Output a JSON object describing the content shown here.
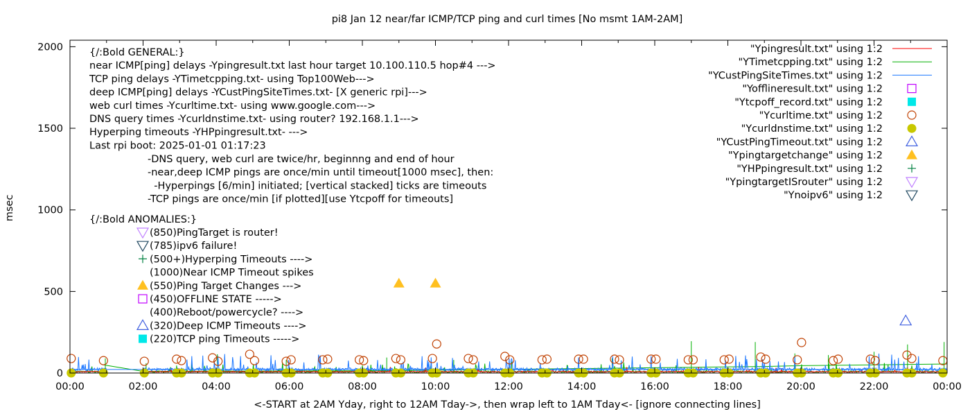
{
  "chart_data": {
    "type": "scatter",
    "title": "pi8 Jan 12  near/far ICMP/TCP ping and curl times [No msmt 1AM-2AM]",
    "xlabel": "<-START at 2AM Yday, right to 12AM Tday->, then wrap left to 1AM Tday<- [ignore connecting lines]",
    "ylabel": "msec",
    "xlim": [
      "00:00",
      "24:00"
    ],
    "ylim": [
      0,
      2040
    ],
    "x_ticks": [
      "00:00",
      "02:00",
      "04:00",
      "06:00",
      "08:00",
      "10:00",
      "12:00",
      "14:00",
      "16:00",
      "18:00",
      "20:00",
      "22:00",
      "00:00"
    ],
    "y_ticks": [
      0,
      500,
      1000,
      1500,
      2000
    ],
    "grid": false,
    "legend_placement": "top-right",
    "legend": [
      {
        "label": "\"Ypingresult.txt\" using 1:2",
        "kind": "line",
        "color": "#ff0000"
      },
      {
        "label": "\"YTimetcpping.txt\" using 1:2",
        "kind": "line",
        "color": "#00b000"
      },
      {
        "label": "\"YCustPingSiteTimes.txt\" using 1:2",
        "kind": "line",
        "color": "#1e78ff"
      },
      {
        "label": "\"Yofflineresult.txt\" using 1:2",
        "kind": "open-square",
        "color": "#c000ff"
      },
      {
        "label": "\"Ytcpoff_record.txt\" using 1:2",
        "kind": "filled-square",
        "color": "#00e8e8"
      },
      {
        "label": "\"Ycurltime.txt\" using 1:2",
        "kind": "open-circle",
        "color": "#c04000"
      },
      {
        "label": "\"Ycurldnstime.txt\" using 1:2",
        "kind": "filled-circle",
        "color": "#c8c800"
      },
      {
        "label": "\"YCustPingTimeout.txt\" using 1:2",
        "kind": "open-triangle-up",
        "color": "#4060e0"
      },
      {
        "label": "\"Ypingtargetchange\" using 1:2",
        "kind": "filled-triangle-up",
        "color": "#ffc020"
      },
      {
        "label": "\"YHPpingresult.txt\" using 1:2",
        "kind": "plus",
        "color": "#008040"
      },
      {
        "label": "\"YpingtargetISrouter\" using 1:2",
        "kind": "open-triangle-down",
        "color": "#c080ff"
      },
      {
        "label": "\"Ynoipv6\" using 1:2",
        "kind": "open-triangle-down",
        "color": "#204860"
      }
    ],
    "general_text": [
      "{/:Bold GENERAL:}",
      "near ICMP[ping] delays -Ypingresult.txt last hour target 10.100.110.5 hop#4 --->",
      "TCP ping delays -YTimetcpping.txt- using Top100Web--->",
      "deep ICMP[ping] delays -YCustPingSiteTimes.txt- [X generic rpi]--->",
      "web curl times -Ycurltime.txt- using www.google.com--->",
      "DNS query times -Ycurldnstime.txt- using router? 192.168.1.1--->",
      "Hyperping timeouts -YHPpingresult.txt- --->",
      "Last rpi boot: 2025-01-01 01:17:23"
    ],
    "notes_text": [
      "-DNS query, web curl are twice/hr, beginnng and end of hour",
      "-near,deep ICMP pings are once/min until timeout[1000 msec], then:",
      "  -Hyperpings [6/min] initiated; [vertical stacked] ticks are timeouts",
      "-TCP pings are once/min [if plotted][use Ytcpoff for timeouts]"
    ],
    "anomalies_title": "{/:Bold ANOMALIES:}",
    "anomalies": [
      {
        "text": "(850)PingTarget is router!",
        "kind": "open-triangle-down",
        "color": "#c080ff"
      },
      {
        "text": "(785)ipv6 failure!",
        "kind": "open-triangle-down",
        "color": "#204860"
      },
      {
        "text": "(500+)Hyperping Timeouts ---->",
        "kind": "plus",
        "color": "#008040"
      },
      {
        "text": "(1000)Near ICMP Timeout spikes",
        "kind": "none",
        "color": ""
      },
      {
        "text": "(550)Ping Target Changes --->",
        "kind": "filled-triangle-up",
        "color": "#ffc020"
      },
      {
        "text": "(450)OFFLINE STATE ----->",
        "kind": "open-square",
        "color": "#c000ff"
      },
      {
        "text": "(400)Reboot/powercycle? ---->",
        "kind": "none",
        "color": ""
      },
      {
        "text": "(320)Deep ICMP Timeouts ---->",
        "kind": "open-triangle-up",
        "color": "#4060e0"
      },
      {
        "text": "(220)TCP ping Timeouts ----->",
        "kind": "filled-square",
        "color": "#00e8e8"
      }
    ],
    "series": {
      "curltime": [
        [
          "00:02",
          89
        ],
        [
          "00:55",
          76
        ],
        [
          "02:02",
          72
        ],
        [
          "02:55",
          85
        ],
        [
          "03:03",
          76
        ],
        [
          "03:54",
          93
        ],
        [
          "04:03",
          72
        ],
        [
          "04:55",
          115
        ],
        [
          "05:03",
          76
        ],
        [
          "05:55",
          72
        ],
        [
          "06:03",
          81
        ],
        [
          "06:55",
          81
        ],
        [
          "07:03",
          85
        ],
        [
          "07:55",
          81
        ],
        [
          "08:02",
          76
        ],
        [
          "08:55",
          89
        ],
        [
          "09:03",
          81
        ],
        [
          "09:55",
          89
        ],
        [
          "10:02",
          178
        ],
        [
          "10:54",
          89
        ],
        [
          "11:02",
          81
        ],
        [
          "11:54",
          102
        ],
        [
          "12:02",
          81
        ],
        [
          "12:55",
          81
        ],
        [
          "13:03",
          85
        ],
        [
          "13:55",
          85
        ],
        [
          "14:03",
          85
        ],
        [
          "14:54",
          85
        ],
        [
          "15:02",
          81
        ],
        [
          "15:54",
          85
        ],
        [
          "16:02",
          85
        ],
        [
          "16:55",
          81
        ],
        [
          "17:03",
          81
        ],
        [
          "17:54",
          81
        ],
        [
          "18:02",
          85
        ],
        [
          "18:54",
          98
        ],
        [
          "19:02",
          85
        ],
        [
          "19:54",
          81
        ],
        [
          "20:01",
          187
        ],
        [
          "20:53",
          76
        ],
        [
          "21:01",
          85
        ],
        [
          "21:54",
          85
        ],
        [
          "22:02",
          76
        ],
        [
          "22:54",
          110
        ],
        [
          "23:02",
          89
        ],
        [
          "23:53",
          76
        ]
      ],
      "curldnstime": [
        [
          "00:02",
          0
        ],
        [
          "00:55",
          0
        ],
        [
          "02:02",
          0
        ],
        [
          "02:55",
          0
        ],
        [
          "03:03",
          0
        ],
        [
          "03:54",
          0
        ],
        [
          "04:03",
          0
        ],
        [
          "04:55",
          0
        ],
        [
          "05:03",
          0
        ],
        [
          "05:55",
          0
        ],
        [
          "06:03",
          0
        ],
        [
          "06:55",
          0
        ],
        [
          "07:03",
          0
        ],
        [
          "07:55",
          0
        ],
        [
          "08:02",
          0
        ],
        [
          "08:55",
          0
        ],
        [
          "09:03",
          0
        ],
        [
          "09:55",
          0
        ],
        [
          "10:02",
          0
        ],
        [
          "10:54",
          0
        ],
        [
          "11:02",
          0
        ],
        [
          "11:54",
          0
        ],
        [
          "12:02",
          0
        ],
        [
          "12:55",
          0
        ],
        [
          "13:03",
          0
        ],
        [
          "13:55",
          0
        ],
        [
          "14:03",
          0
        ],
        [
          "14:54",
          0
        ],
        [
          "15:02",
          0
        ],
        [
          "15:54",
          0
        ],
        [
          "16:02",
          0
        ],
        [
          "16:55",
          0
        ],
        [
          "17:03",
          0
        ],
        [
          "17:54",
          0
        ],
        [
          "18:02",
          0
        ],
        [
          "18:54",
          0
        ],
        [
          "19:02",
          0
        ],
        [
          "19:54",
          0
        ],
        [
          "20:01",
          0
        ],
        [
          "20:53",
          0
        ],
        [
          "21:01",
          0
        ],
        [
          "21:54",
          0
        ],
        [
          "22:02",
          0
        ],
        [
          "22:54",
          0
        ],
        [
          "23:02",
          0
        ],
        [
          "23:53",
          0
        ]
      ],
      "pingtargetchange": [
        [
          "09:00",
          550
        ],
        [
          "10:00",
          550
        ]
      ],
      "custpingtimeout": [
        [
          "22:52",
          320
        ]
      ],
      "tcpping_trend": [
        [
          "00:55",
          50
        ],
        [
          "02:00",
          10
        ],
        [
          "05:00",
          12
        ],
        [
          "09:00",
          15
        ],
        [
          "13:00",
          25
        ],
        [
          "15:00",
          30
        ],
        [
          "17:00",
          35
        ],
        [
          "19:00",
          40
        ],
        [
          "20:00",
          45
        ],
        [
          "22:00",
          50
        ],
        [
          "24:00",
          55
        ]
      ],
      "tcpping_spikes": [
        [
          "00:58",
          90
        ],
        [
          "02:05",
          60
        ],
        [
          "04:02",
          115
        ],
        [
          "05:55",
          80
        ],
        [
          "08:40",
          95
        ],
        [
          "10:30",
          80
        ],
        [
          "12:05",
          70
        ],
        [
          "14:50",
          90
        ],
        [
          "17:00",
          195
        ],
        [
          "18:45",
          190
        ],
        [
          "19:50",
          120
        ],
        [
          "20:45",
          110
        ],
        [
          "22:00",
          130
        ],
        [
          "22:55",
          175
        ],
        [
          "23:55",
          190
        ]
      ],
      "pingresult_baseline": 8,
      "custpingsite_baseline": 22
    }
  }
}
